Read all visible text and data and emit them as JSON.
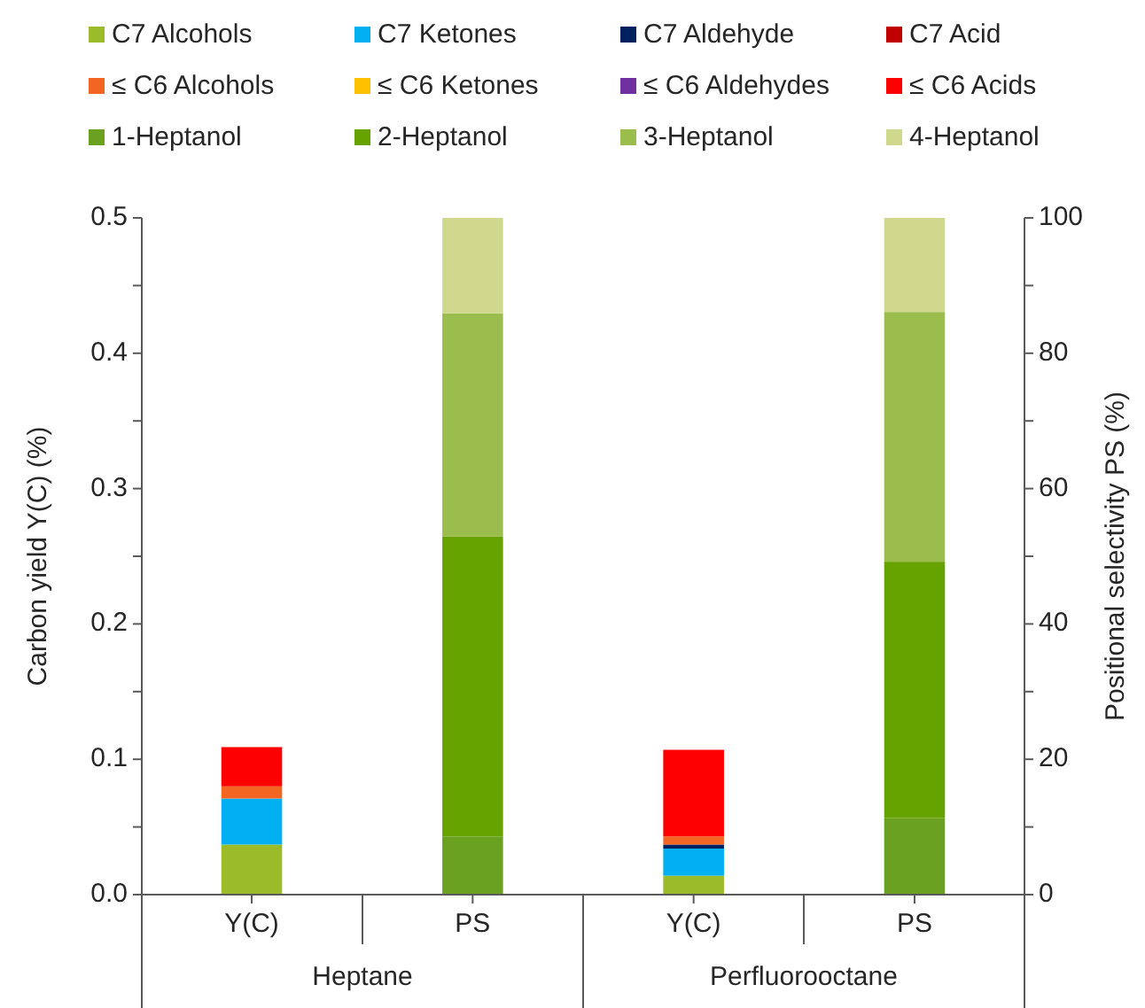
{
  "chart_data": {
    "type": "bar",
    "stacked": true,
    "categories": [
      "Y(C)",
      "PS",
      "Y(C)",
      "PS"
    ],
    "ylabel": "Carbon yield Y(C) (%)",
    "y2label": "Positional selectivity PS (%)",
    "ylim": [
      0,
      0.5
    ],
    "yticks": [
      {
        "value": 0,
        "label": "0.0"
      },
      {
        "value": 0.05,
        "label": null
      },
      {
        "value": 0.1,
        "label": "0.1"
      },
      {
        "value": 0.15,
        "label": null
      },
      {
        "value": 0.2,
        "label": "0.2"
      },
      {
        "value": 0.25,
        "label": null
      },
      {
        "value": 0.3,
        "label": "0.3"
      },
      {
        "value": 0.35,
        "label": null
      },
      {
        "value": 0.4,
        "label": "0.4"
      },
      {
        "value": 0.45,
        "label": null
      },
      {
        "value": 0.5,
        "label": "0.5"
      }
    ],
    "y2lim": [
      0,
      100
    ],
    "y2ticks": [
      0,
      {
        "value": 10,
        "label": null
      },
      20,
      {
        "value": 30,
        "label": null
      },
      40,
      {
        "value": 50,
        "label": null
      },
      60,
      {
        "value": 70,
        "label": null
      },
      80,
      {
        "value": 90,
        "label": null
      },
      100
    ],
    "annotations": [
      "Heptane",
      "Perfluorooctane"
    ],
    "legend": "top",
    "grid": false,
    "series": [
      {
        "name": "C7 Alcohols",
        "color": "#9bbb2a",
        "values": [
          0.037,
          null,
          0.014,
          null
        ]
      },
      {
        "name": "C7 Ketones",
        "color": "#00b0f0",
        "values": [
          0.034,
          null,
          0.02,
          null
        ]
      },
      {
        "name": "C7 Aldehyde",
        "color": "#002060",
        "values": [
          0,
          null,
          0.003,
          null
        ]
      },
      {
        "name": "C7 Acid",
        "color": "#c00000",
        "values": [
          0,
          null,
          0,
          null
        ]
      },
      {
        "name": "≤ C6 Alcohols",
        "color": "#f26522",
        "values": [
          0.009,
          null,
          0.006,
          null
        ]
      },
      {
        "name": "≤ C6 Ketones",
        "color": "#ffc000",
        "values": [
          0,
          null,
          0,
          null
        ]
      },
      {
        "name": "≤ C6 Aldehydes",
        "color": "#7030a0",
        "values": [
          0,
          null,
          0,
          null
        ]
      },
      {
        "name": "≤ C6 Acids",
        "color": "#ff0000",
        "values": [
          0.029,
          null,
          0.064,
          null
        ]
      },
      {
        "name": "1-Heptanol",
        "color": "#6aa121",
        "axis": "y2",
        "values": [
          null,
          8.6,
          null,
          11.3
        ]
      },
      {
        "name": "2-Heptanol",
        "color": "#66a300",
        "axis": "y2",
        "values": [
          null,
          44.3,
          null,
          37.9
        ]
      },
      {
        "name": "3-Heptanol",
        "color": "#9bbd4e",
        "axis": "y2",
        "values": [
          null,
          33,
          null,
          36.9
        ]
      },
      {
        "name": "4-Heptanol",
        "color": "#d0d88e",
        "axis": "y2",
        "values": [
          null,
          14.1,
          null,
          13.9
        ]
      }
    ]
  }
}
